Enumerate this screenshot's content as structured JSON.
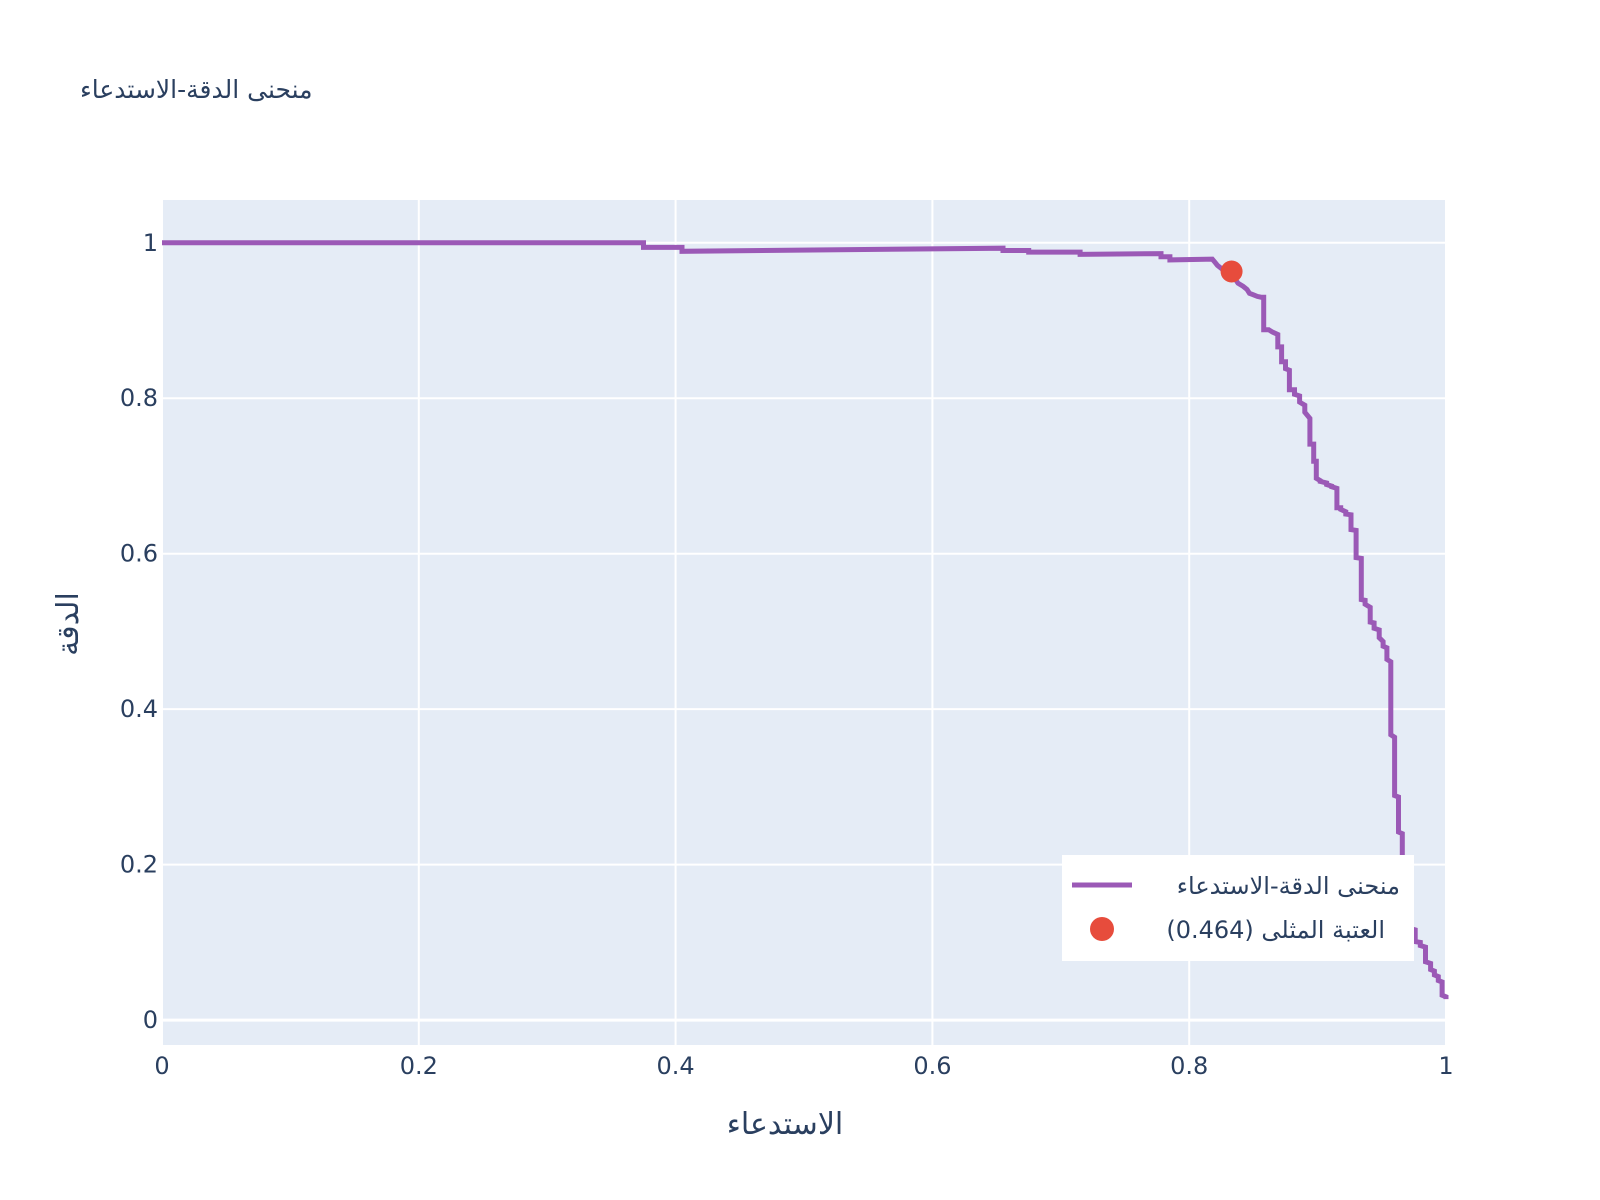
{
  "chart_data": {
    "type": "line",
    "title": "منحنى الدقة-الاستدعاء",
    "xlabel": "الاستدعاء",
    "ylabel": "الدقة",
    "xlim": [
      0,
      1
    ],
    "ylim": [
      -0.032,
      1.055
    ],
    "x_ticks": [
      0,
      0.2,
      0.4,
      0.6,
      0.8,
      1
    ],
    "y_ticks": [
      0,
      0.2,
      0.4,
      0.6,
      0.8,
      1
    ],
    "x_tick_labels": [
      "0",
      "0.2",
      "0.4",
      "0.6",
      "0.8",
      "1"
    ],
    "y_tick_labels": [
      "0",
      "0.2",
      "0.4",
      "0.6",
      "0.8",
      "1"
    ],
    "grid": true,
    "legend_position": "bottom-right",
    "colors": {
      "curve": "#9b59b6",
      "point": "#e74c3c",
      "plot_bg": "#e5ecf6",
      "grid": "#ffffff"
    },
    "series": [
      {
        "name": "منحنى الدقة-الاستدعاء",
        "mode": "line",
        "x": [
          0,
          0.375,
          0.375,
          0.405,
          0.405,
          0.655,
          0.655,
          0.675,
          0.675,
          0.715,
          0.715,
          0.778,
          0.778,
          0.785,
          0.785,
          0.818,
          0.82,
          0.822,
          0.825,
          0.828,
          0.83,
          0.833,
          0.836,
          0.838,
          0.842,
          0.845,
          0.847,
          0.85,
          0.853,
          0.856,
          0.858,
          0.858,
          0.862,
          0.865,
          0.865,
          0.869,
          0.869,
          0.872,
          0.872,
          0.875,
          0.875,
          0.878,
          0.878,
          0.882,
          0.882,
          0.886,
          0.886,
          0.89,
          0.89,
          0.894,
          0.894,
          0.897,
          0.897,
          0.899,
          0.899,
          0.902,
          0.902,
          0.907,
          0.907,
          0.911,
          0.911,
          0.915,
          0.915,
          0.918,
          0.918,
          0.922,
          0.922,
          0.926,
          0.926,
          0.93,
          0.93,
          0.934,
          0.934,
          0.937,
          0.937,
          0.941,
          0.941,
          0.944,
          0.944,
          0.948,
          0.948,
          0.951,
          0.951,
          0.954,
          0.954,
          0.957,
          0.957,
          0.96,
          0.96,
          0.963,
          0.963,
          0.966,
          0.966,
          0.969,
          0.969,
          0.972,
          0.972,
          0.976,
          0.976,
          0.98,
          0.98,
          0.984,
          0.984,
          0.988,
          0.988,
          0.991,
          0.991,
          0.994,
          0.994,
          0.997,
          0.997,
          1.0,
          1.0
        ],
        "y": [
          1.0,
          1.0,
          0.994,
          0.994,
          0.989,
          0.993,
          0.99,
          0.99,
          0.988,
          0.988,
          0.985,
          0.986,
          0.982,
          0.982,
          0.978,
          0.979,
          0.975,
          0.971,
          0.967,
          0.963,
          0.96,
          0.957,
          0.953,
          0.948,
          0.944,
          0.94,
          0.935,
          0.933,
          0.931,
          0.93,
          0.93,
          0.888,
          0.888,
          0.885,
          0.885,
          0.882,
          0.866,
          0.866,
          0.847,
          0.847,
          0.838,
          0.836,
          0.811,
          0.811,
          0.805,
          0.803,
          0.795,
          0.791,
          0.782,
          0.774,
          0.741,
          0.741,
          0.719,
          0.719,
          0.697,
          0.694,
          0.693,
          0.691,
          0.689,
          0.687,
          0.686,
          0.684,
          0.659,
          0.659,
          0.657,
          0.654,
          0.651,
          0.65,
          0.631,
          0.63,
          0.595,
          0.594,
          0.541,
          0.54,
          0.535,
          0.531,
          0.512,
          0.511,
          0.504,
          0.502,
          0.492,
          0.487,
          0.481,
          0.479,
          0.464,
          0.461,
          0.367,
          0.364,
          0.289,
          0.287,
          0.242,
          0.24,
          0.17,
          0.168,
          0.143,
          0.141,
          0.118,
          0.116,
          0.101,
          0.1,
          0.096,
          0.094,
          0.075,
          0.073,
          0.065,
          0.063,
          0.058,
          0.056,
          0.051,
          0.049,
          0.032,
          0.03,
          0.027
        ]
      },
      {
        "name": "(العتبة المثلى (0.464",
        "mode": "markers",
        "x": [
          0.833
        ],
        "y": [
          0.963
        ]
      }
    ]
  }
}
